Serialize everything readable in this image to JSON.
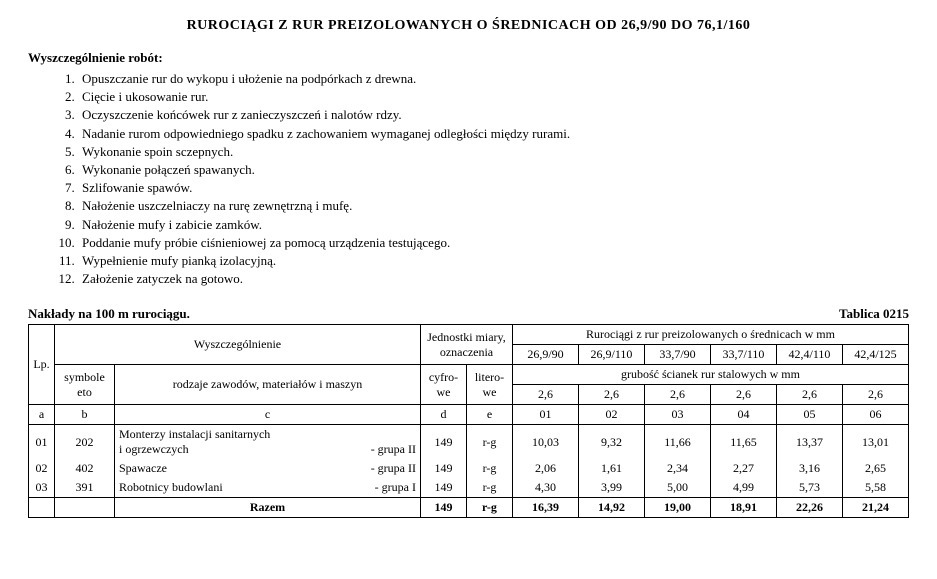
{
  "title": "RUROCIĄGI Z RUR PREIZOLOWANYCH O ŚREDNICACH OD 26,9/90 DO 76,1/160",
  "works_label": "Wyszczególnienie robót:",
  "works": [
    "Opuszczanie rur do wykopu i ułożenie na podpórkach z drewna.",
    "Cięcie i ukosowanie rur.",
    "Oczyszczenie końcówek rur z zanieczyszczeń i nalotów rdzy.",
    "Nadanie rurom odpowiedniego spadku z zachowaniem wymaganej odległości między rurami.",
    "Wykonanie spoin sczepnych.",
    "Wykonanie połączeń spawanych.",
    "Szlifowanie spawów.",
    "Nałożenie uszczelniaczy na rurę zewnętrzną i mufę.",
    "Nałożenie mufy i zabicie zamków.",
    "Poddanie mufy próbie ciśnieniowej za pomocą urządzenia testującego.",
    "Wypełnienie mufy pianką izolacyjną.",
    "Założenie zatyczek na gotowo."
  ],
  "table_caption_left": "Nakłady na 100 m rurociągu.",
  "table_caption_right": "Tablica 0215",
  "header": {
    "lp": "Lp.",
    "wysz": "Wyszczególnienie",
    "jednostki": "Jednostki miary, oznaczenia",
    "rurociagi": "Rurociągi z rur preizolowanych o średnicach w mm",
    "symbole": "symbole eto",
    "rodzaje": "rodzaje zawodów, materiałów i maszyn",
    "cyfrowe": "cyfro-we",
    "literowe": "litero-we",
    "grubosc": "grubość ścianek rur stalowych w mm",
    "diam": [
      "26,9/90",
      "26,9/110",
      "33,7/90",
      "33,7/110",
      "42,4/110",
      "42,4/125"
    ],
    "thick": [
      "2,6",
      "2,6",
      "2,6",
      "2,6",
      "2,6",
      "2,6"
    ],
    "letters": {
      "a": "a",
      "b": "b",
      "c": "c",
      "d": "d",
      "e": "e"
    },
    "nums": [
      "01",
      "02",
      "03",
      "04",
      "05",
      "06"
    ]
  },
  "rows": [
    {
      "lp": "01",
      "sym": "202",
      "desc_line1": "Monterzy instalacji sanitarnych",
      "desc_name": "i ogrzewczych",
      "desc_group": "- grupa II",
      "cyf": "149",
      "lit": "r-g",
      "vals": [
        "10,03",
        "9,32",
        "11,66",
        "11,65",
        "13,37",
        "13,01"
      ]
    },
    {
      "lp": "02",
      "sym": "402",
      "desc_name": "Spawacze",
      "desc_group": "- grupa II",
      "cyf": "149",
      "lit": "r-g",
      "vals": [
        "2,06",
        "1,61",
        "2,34",
        "2,27",
        "3,16",
        "2,65"
      ]
    },
    {
      "lp": "03",
      "sym": "391",
      "desc_name": "Robotnicy budowlani",
      "desc_group": "- grupa I",
      "cyf": "149",
      "lit": "r-g",
      "vals": [
        "4,30",
        "3,99",
        "5,00",
        "4,99",
        "5,73",
        "5,58"
      ]
    }
  ],
  "razem": {
    "label": "Razem",
    "cyf": "149",
    "lit": "r-g",
    "vals": [
      "16,39",
      "14,92",
      "19,00",
      "18,91",
      "22,26",
      "21,24"
    ]
  }
}
